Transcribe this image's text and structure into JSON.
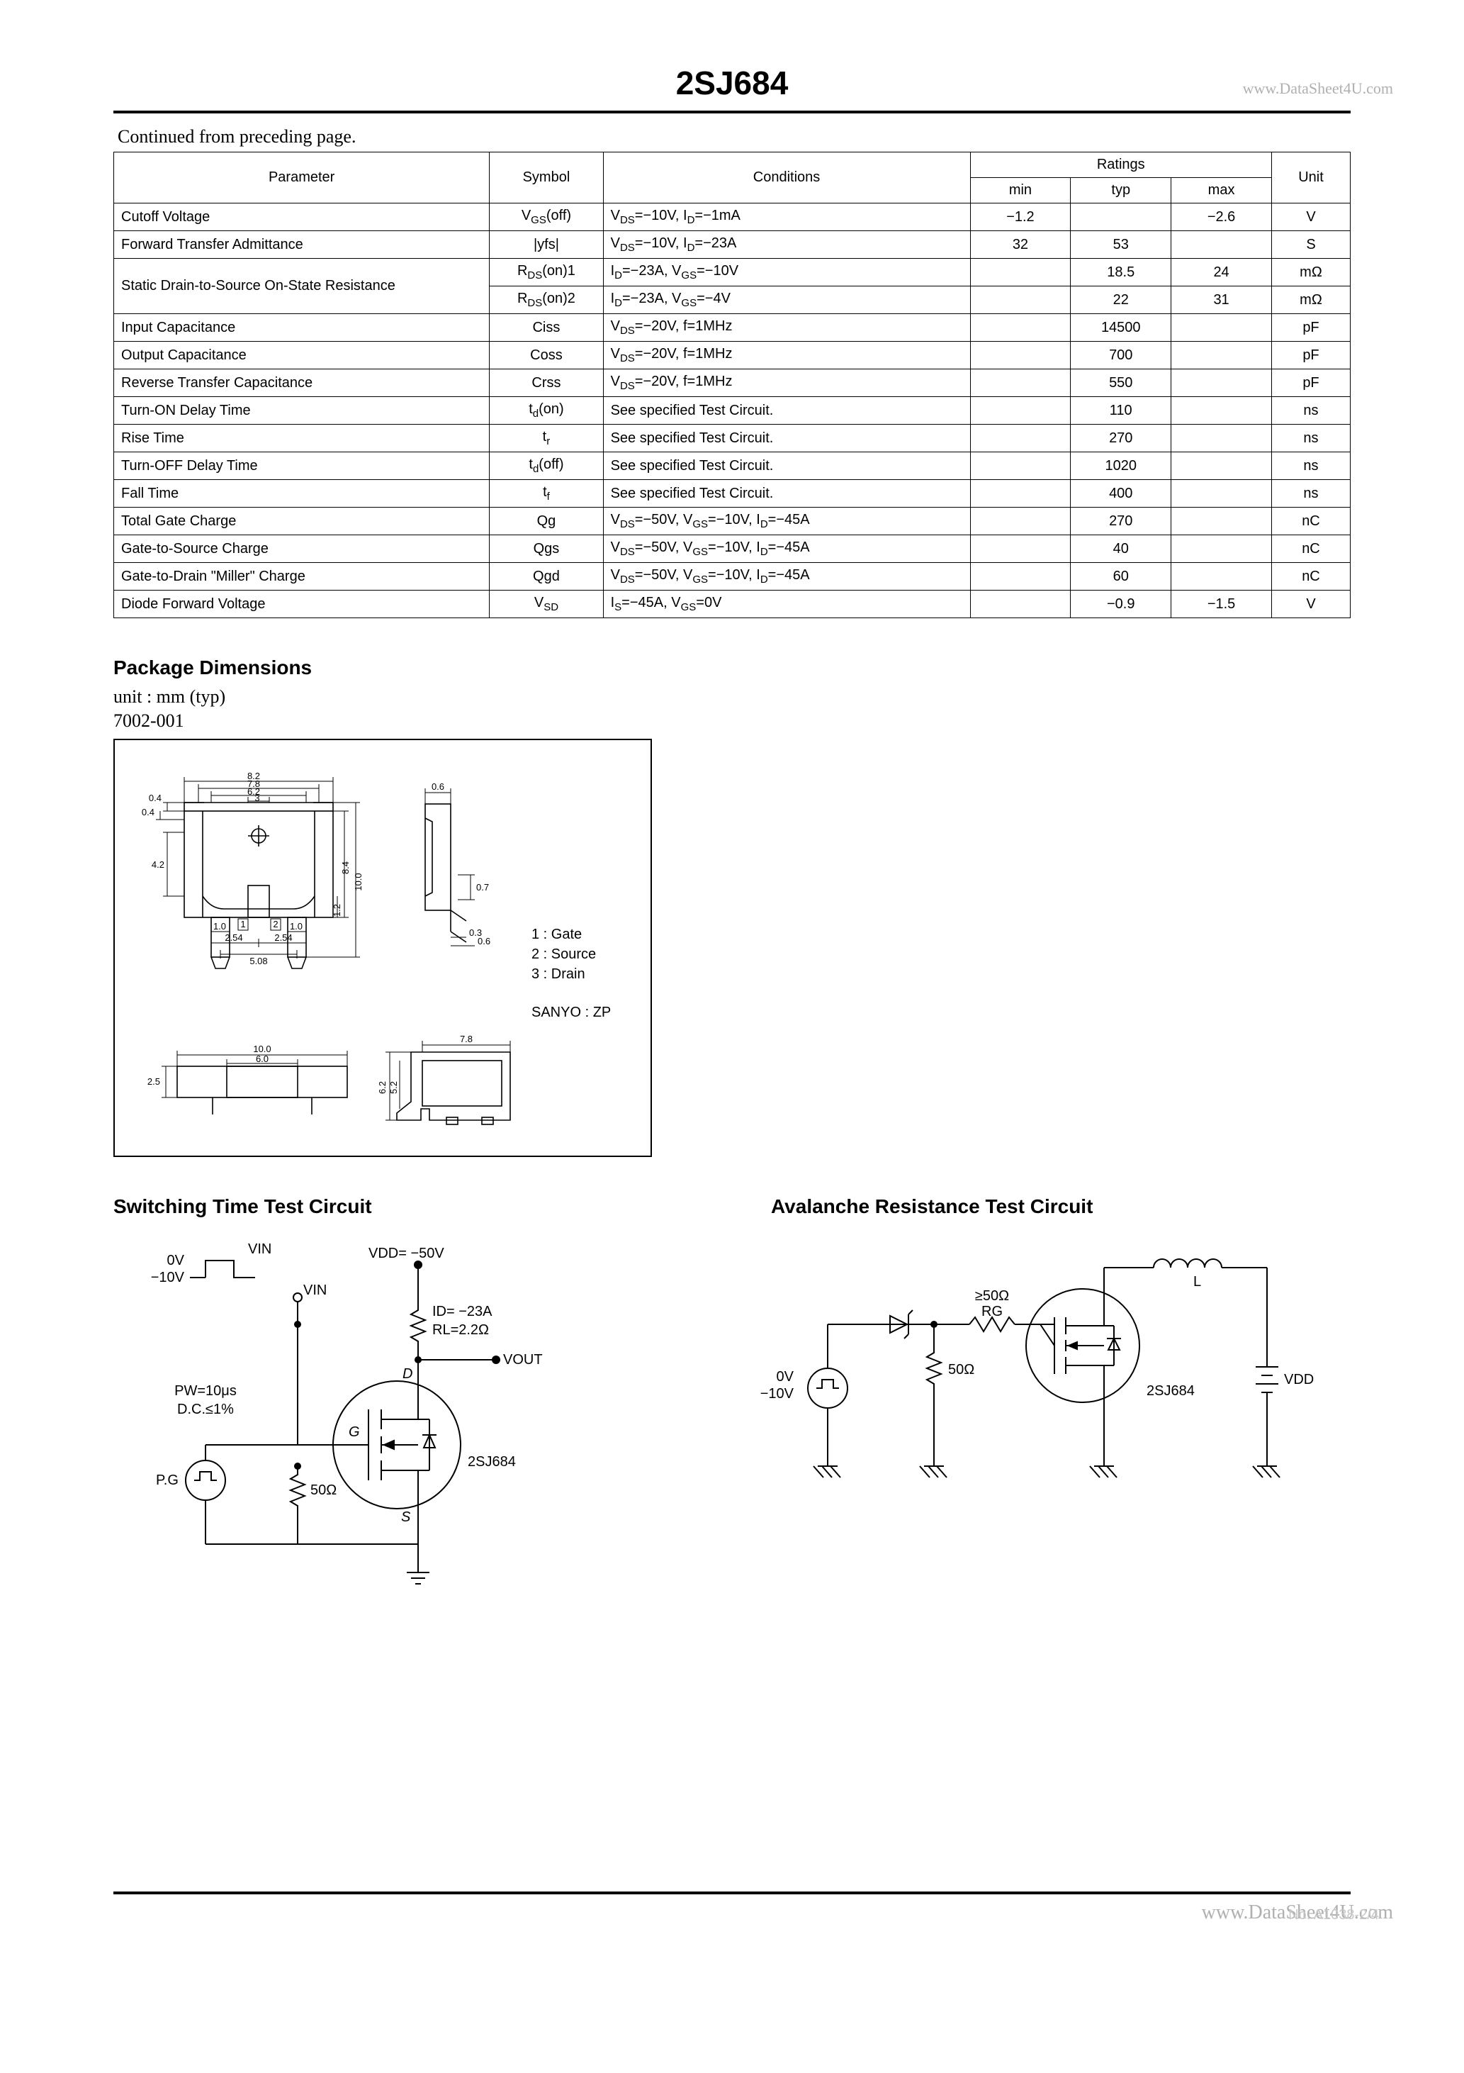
{
  "header": {
    "title": "2SJ684",
    "watermark": "www.DataSheet4U.com"
  },
  "continued_note": "Continued from preceding page.",
  "table": {
    "headers": {
      "parameter": "Parameter",
      "symbol": "Symbol",
      "conditions": "Conditions",
      "ratings": "Ratings",
      "min": "min",
      "typ": "typ",
      "max": "max",
      "unit": "Unit"
    },
    "rows": [
      {
        "param": "Cutoff Voltage",
        "symbol": "V<sub>GS</sub>(off)",
        "cond": "V<sub>DS</sub>=−10V, I<sub>D</sub>=−1mA",
        "min": "−1.2",
        "typ": "",
        "max": "−2.6",
        "unit": "V",
        "rowspan": 1
      },
      {
        "param": "Forward Transfer Admittance",
        "symbol": "|yfs|",
        "cond": "V<sub>DS</sub>=−10V, I<sub>D</sub>=−23A",
        "min": "32",
        "typ": "53",
        "max": "",
        "unit": "S",
        "rowspan": 1
      },
      {
        "param": "Static Drain-to-Source On-State Resistance",
        "symbol": "R<sub>DS</sub>(on)1",
        "cond": "I<sub>D</sub>=−23A, V<sub>GS</sub>=−10V",
        "min": "",
        "typ": "18.5",
        "max": "24",
        "unit": "mΩ",
        "rowspan": 2
      },
      {
        "param": "",
        "symbol": "R<sub>DS</sub>(on)2",
        "cond": "I<sub>D</sub>=−23A, V<sub>GS</sub>=−4V",
        "min": "",
        "typ": "22",
        "max": "31",
        "unit": "mΩ",
        "rowspan": 0
      },
      {
        "param": "Input Capacitance",
        "symbol": "Ciss",
        "cond": "V<sub>DS</sub>=−20V, f=1MHz",
        "min": "",
        "typ": "14500",
        "max": "",
        "unit": "pF",
        "rowspan": 1
      },
      {
        "param": "Output Capacitance",
        "symbol": "Coss",
        "cond": "V<sub>DS</sub>=−20V, f=1MHz",
        "min": "",
        "typ": "700",
        "max": "",
        "unit": "pF",
        "rowspan": 1
      },
      {
        "param": "Reverse Transfer Capacitance",
        "symbol": "Crss",
        "cond": "V<sub>DS</sub>=−20V, f=1MHz",
        "min": "",
        "typ": "550",
        "max": "",
        "unit": "pF",
        "rowspan": 1
      },
      {
        "param": "Turn-ON Delay Time",
        "symbol": "t<sub>d</sub>(on)",
        "cond": "See specified Test Circuit.",
        "min": "",
        "typ": "110",
        "max": "",
        "unit": "ns",
        "rowspan": 1
      },
      {
        "param": "Rise Time",
        "symbol": "t<sub>r</sub>",
        "cond": "See specified Test Circuit.",
        "min": "",
        "typ": "270",
        "max": "",
        "unit": "ns",
        "rowspan": 1
      },
      {
        "param": "Turn-OFF Delay Time",
        "symbol": "t<sub>d</sub>(off)",
        "cond": "See specified Test Circuit.",
        "min": "",
        "typ": "1020",
        "max": "",
        "unit": "ns",
        "rowspan": 1
      },
      {
        "param": "Fall Time",
        "symbol": "t<sub>f</sub>",
        "cond": "See specified Test Circuit.",
        "min": "",
        "typ": "400",
        "max": "",
        "unit": "ns",
        "rowspan": 1
      },
      {
        "param": "Total Gate Charge",
        "symbol": "Qg",
        "cond": "V<sub>DS</sub>=−50V, V<sub>GS</sub>=−10V, I<sub>D</sub>=−45A",
        "min": "",
        "typ": "270",
        "max": "",
        "unit": "nC",
        "rowspan": 1
      },
      {
        "param": "Gate-to-Source Charge",
        "symbol": "Qgs",
        "cond": "V<sub>DS</sub>=−50V, V<sub>GS</sub>=−10V, I<sub>D</sub>=−45A",
        "min": "",
        "typ": "40",
        "max": "",
        "unit": "nC",
        "rowspan": 1
      },
      {
        "param": "Gate-to-Drain \"Miller\" Charge",
        "symbol": "Qgd",
        "cond": "V<sub>DS</sub>=−50V, V<sub>GS</sub>=−10V, I<sub>D</sub>=−45A",
        "min": "",
        "typ": "60",
        "max": "",
        "unit": "nC",
        "rowspan": 1
      },
      {
        "param": "Diode Forward Voltage",
        "symbol": "V<sub>SD</sub>",
        "cond": "I<sub>S</sub>=−45A, V<sub>GS</sub>=0V",
        "min": "",
        "typ": "−0.9",
        "max": "−1.5",
        "unit": "V",
        "rowspan": 1
      }
    ]
  },
  "package": {
    "heading": "Package Dimensions",
    "unit_note": "unit : mm (typ)",
    "code": "7002-001",
    "pins": {
      "p1": "1 : Gate",
      "p2": "2 : Source",
      "p3": "3 : Drain"
    },
    "mfr": "SANYO : ZP",
    "dims": {
      "top_w_out": "8.2",
      "top_w_mid": "7.8",
      "top_w_in": "6.2",
      "top_w_slot": "3",
      "left_h1": "0.4",
      "left_h2": "0.4",
      "body_h": "4.2",
      "mid_h1": "8.4",
      "mid_h2": "10.0",
      "mid_h3": "1.2",
      "pin_w_l": "1.0",
      "pin_p_l": "2.54",
      "pin_w_r": "1.0",
      "pin_p_r": "2.54",
      "center_p": "5.08",
      "pin_n1": "1",
      "pin_n2": "2",
      "bot_w1": "10.0",
      "bot_w2": "6.0",
      "bot_h": "2.5",
      "side_w": "0.6",
      "side_h": "0.7",
      "side_a": "0.3",
      "side_b": "0.6",
      "prof_h1": "6.2",
      "prof_h2": "5.2",
      "prof_w": "7.8"
    }
  },
  "switching": {
    "heading": "Switching Time Test Circuit",
    "vin_label": "VIN",
    "vin_0v": "0V",
    "vin_m10v": "−10V",
    "vdd": "VDD= −50V",
    "id": "ID= −23A",
    "rl": "RL=2.2Ω",
    "vout": "VOUT",
    "pw": "PW=10μs",
    "dc": "D.C.≤1%",
    "pg": "P.G",
    "r50": "50Ω",
    "g": "G",
    "d": "D",
    "s": "S",
    "part": "2SJ684"
  },
  "avalanche": {
    "heading": "Avalanche Resistance Test Circuit",
    "rg_label": "≥50Ω",
    "rg_name": "RG",
    "l_label": "L",
    "r50": "50Ω",
    "v0": "0V",
    "vm10": "−10V",
    "part": "2SJ684",
    "vdd": "VDD"
  },
  "footer": {
    "watermark": "www.DataSheet4U.com",
    "pageno": "No. A1038-2/4"
  }
}
